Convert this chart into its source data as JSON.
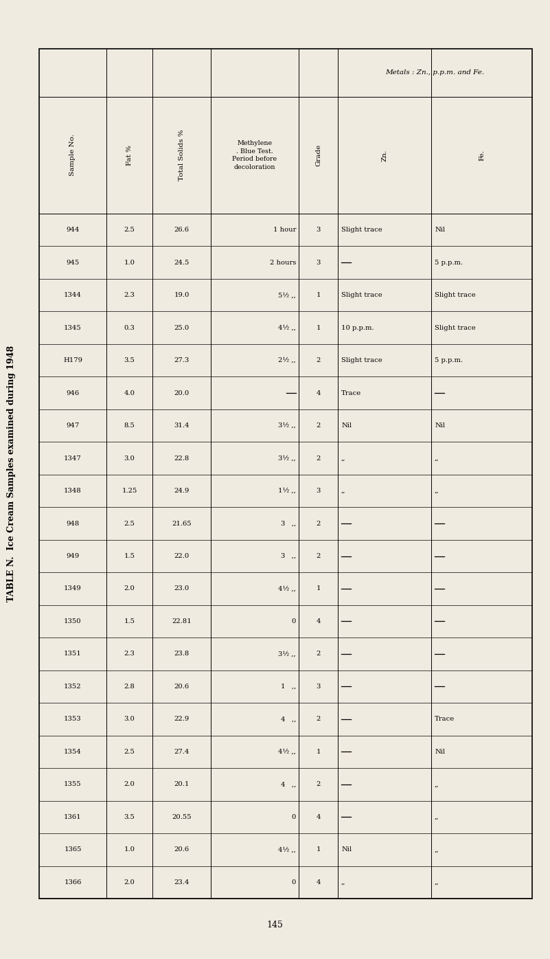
{
  "title": "TABLE N.  Ice Cream Samples examined during 1948",
  "page_number": "145",
  "background_color": "#f0ebe0",
  "rows": [
    [
      "944",
      "2.5",
      "26.6",
      "1 hour",
      "3",
      "Slight trace",
      "Nil"
    ],
    [
      "945",
      "1.0",
      "24.5",
      "2 hours",
      "3",
      "—",
      "5 p.p.m."
    ],
    [
      "1344",
      "2.3",
      "19.0",
      "5½ ,,",
      "1",
      "Slight trace",
      "Slight trace"
    ],
    [
      "1345",
      "0.3",
      "25.0",
      "4½ ,,",
      "1",
      "10 p.p.m.",
      "Slight trace"
    ],
    [
      "H179",
      "3.5",
      "27.3",
      "2½ ,,",
      "2",
      "Slight trace",
      "5 p.p.m."
    ],
    [
      "946",
      "4.0",
      "20.0",
      "—",
      "4",
      "Trace",
      "—"
    ],
    [
      "947",
      "8.5",
      "31.4",
      "3½ ,,",
      "2",
      "Nil",
      "Nil"
    ],
    [
      "1347",
      "3.0",
      "22.8",
      "3½ ,,",
      "2",
      ",,",
      ",,"
    ],
    [
      "1348",
      "1.25",
      "24.9",
      "1½ ,,",
      "3",
      ",,",
      ",,"
    ],
    [
      "948",
      "2.5",
      "21.65",
      "3   ,,",
      "2",
      "—",
      "—"
    ],
    [
      "949",
      "1.5",
      "22.0",
      "3   ,,",
      "2",
      "—",
      "—"
    ],
    [
      "1349",
      "2.0",
      "23.0",
      "4½ ,,",
      "1",
      "—",
      "—"
    ],
    [
      "1350",
      "1.5",
      "22.81",
      "0",
      "4",
      "—",
      "—"
    ],
    [
      "1351",
      "2.3",
      "23.8",
      "3½ ,,",
      "2",
      "—",
      "—"
    ],
    [
      "1352",
      "2.8",
      "20.6",
      "1   ,,",
      "3",
      "—",
      "—"
    ],
    [
      "1353",
      "3.0",
      "22.9",
      "4   ,,",
      "2",
      "—",
      "Trace"
    ],
    [
      "1354",
      "2.5",
      "27.4",
      "4½ ,,",
      "1",
      "—",
      "Nil"
    ],
    [
      "1355",
      "2.0",
      "20.1",
      "4   ,,",
      "2",
      "—",
      ",,"
    ],
    [
      "1361",
      "3.5",
      "20.55",
      "0",
      "4",
      "—",
      ",,"
    ],
    [
      "1365",
      "1.0",
      "20.6",
      "4½ ,,",
      "1",
      "Nil",
      ",,"
    ],
    [
      "1366",
      "2.0",
      "23.4",
      "0",
      "4",
      ",,",
      ",,"
    ]
  ],
  "col_headers": [
    "Sample No.",
    "Fat %",
    "Total Solids %",
    "Methylene\n. Blue Test.\nPeriod before\ndecoloration",
    "Grade",
    "Zn.",
    "Fe."
  ],
  "metals_group_label": "Metals : Zn., p.p.m. and Fe.",
  "dash_cols": [
    5,
    6
  ],
  "note_dash_values": [
    "—"
  ]
}
